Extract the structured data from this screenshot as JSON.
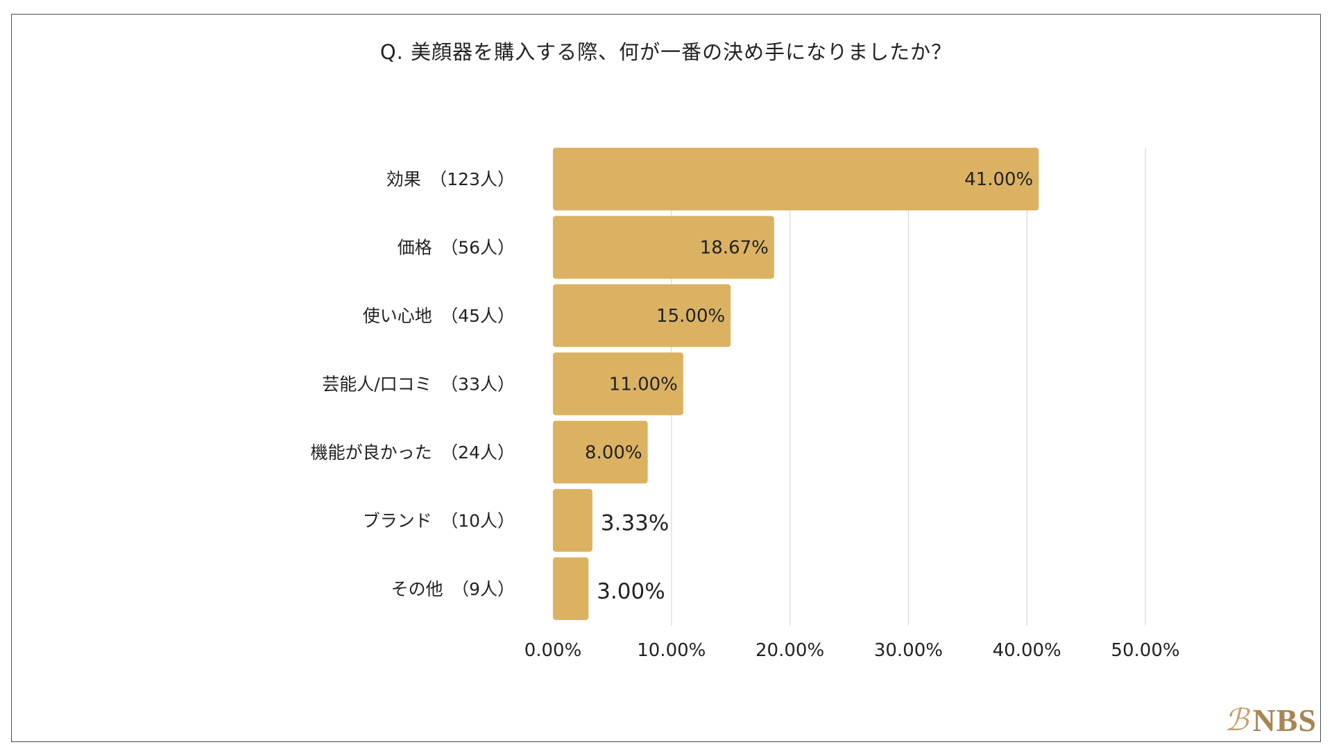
{
  "chart_data": {
    "type": "bar",
    "orientation": "horizontal",
    "title": "Q.  美顔器を購入する際、何が一番の決め手になりましたか？",
    "categories": [
      "効果　（123人）",
      "価格　（56人）",
      "使い心地　（45人）",
      "芸能人/口コミ　（33人）",
      "機能が良かった　（24人）",
      "ブランド　（10人）",
      "その他　（9人）"
    ],
    "values": [
      41.0,
      18.67,
      15.0,
      11.0,
      8.0,
      3.33,
      3.0
    ],
    "value_labels": [
      "41.00%",
      "18.67%",
      "15.00%",
      "11.00%",
      "8.00%",
      "3.33%",
      "3.00%"
    ],
    "xlim": [
      0,
      50
    ],
    "xticks": [
      0,
      10,
      20,
      30,
      40,
      50
    ],
    "xtick_labels": [
      "0.00%",
      "10.00%",
      "20.00%",
      "30.00%",
      "40.00%",
      "50.00%"
    ],
    "grid": "vertical",
    "bar_color": "#dbb262"
  },
  "logo": {
    "mark": "ℬ",
    "text": "NBS"
  }
}
